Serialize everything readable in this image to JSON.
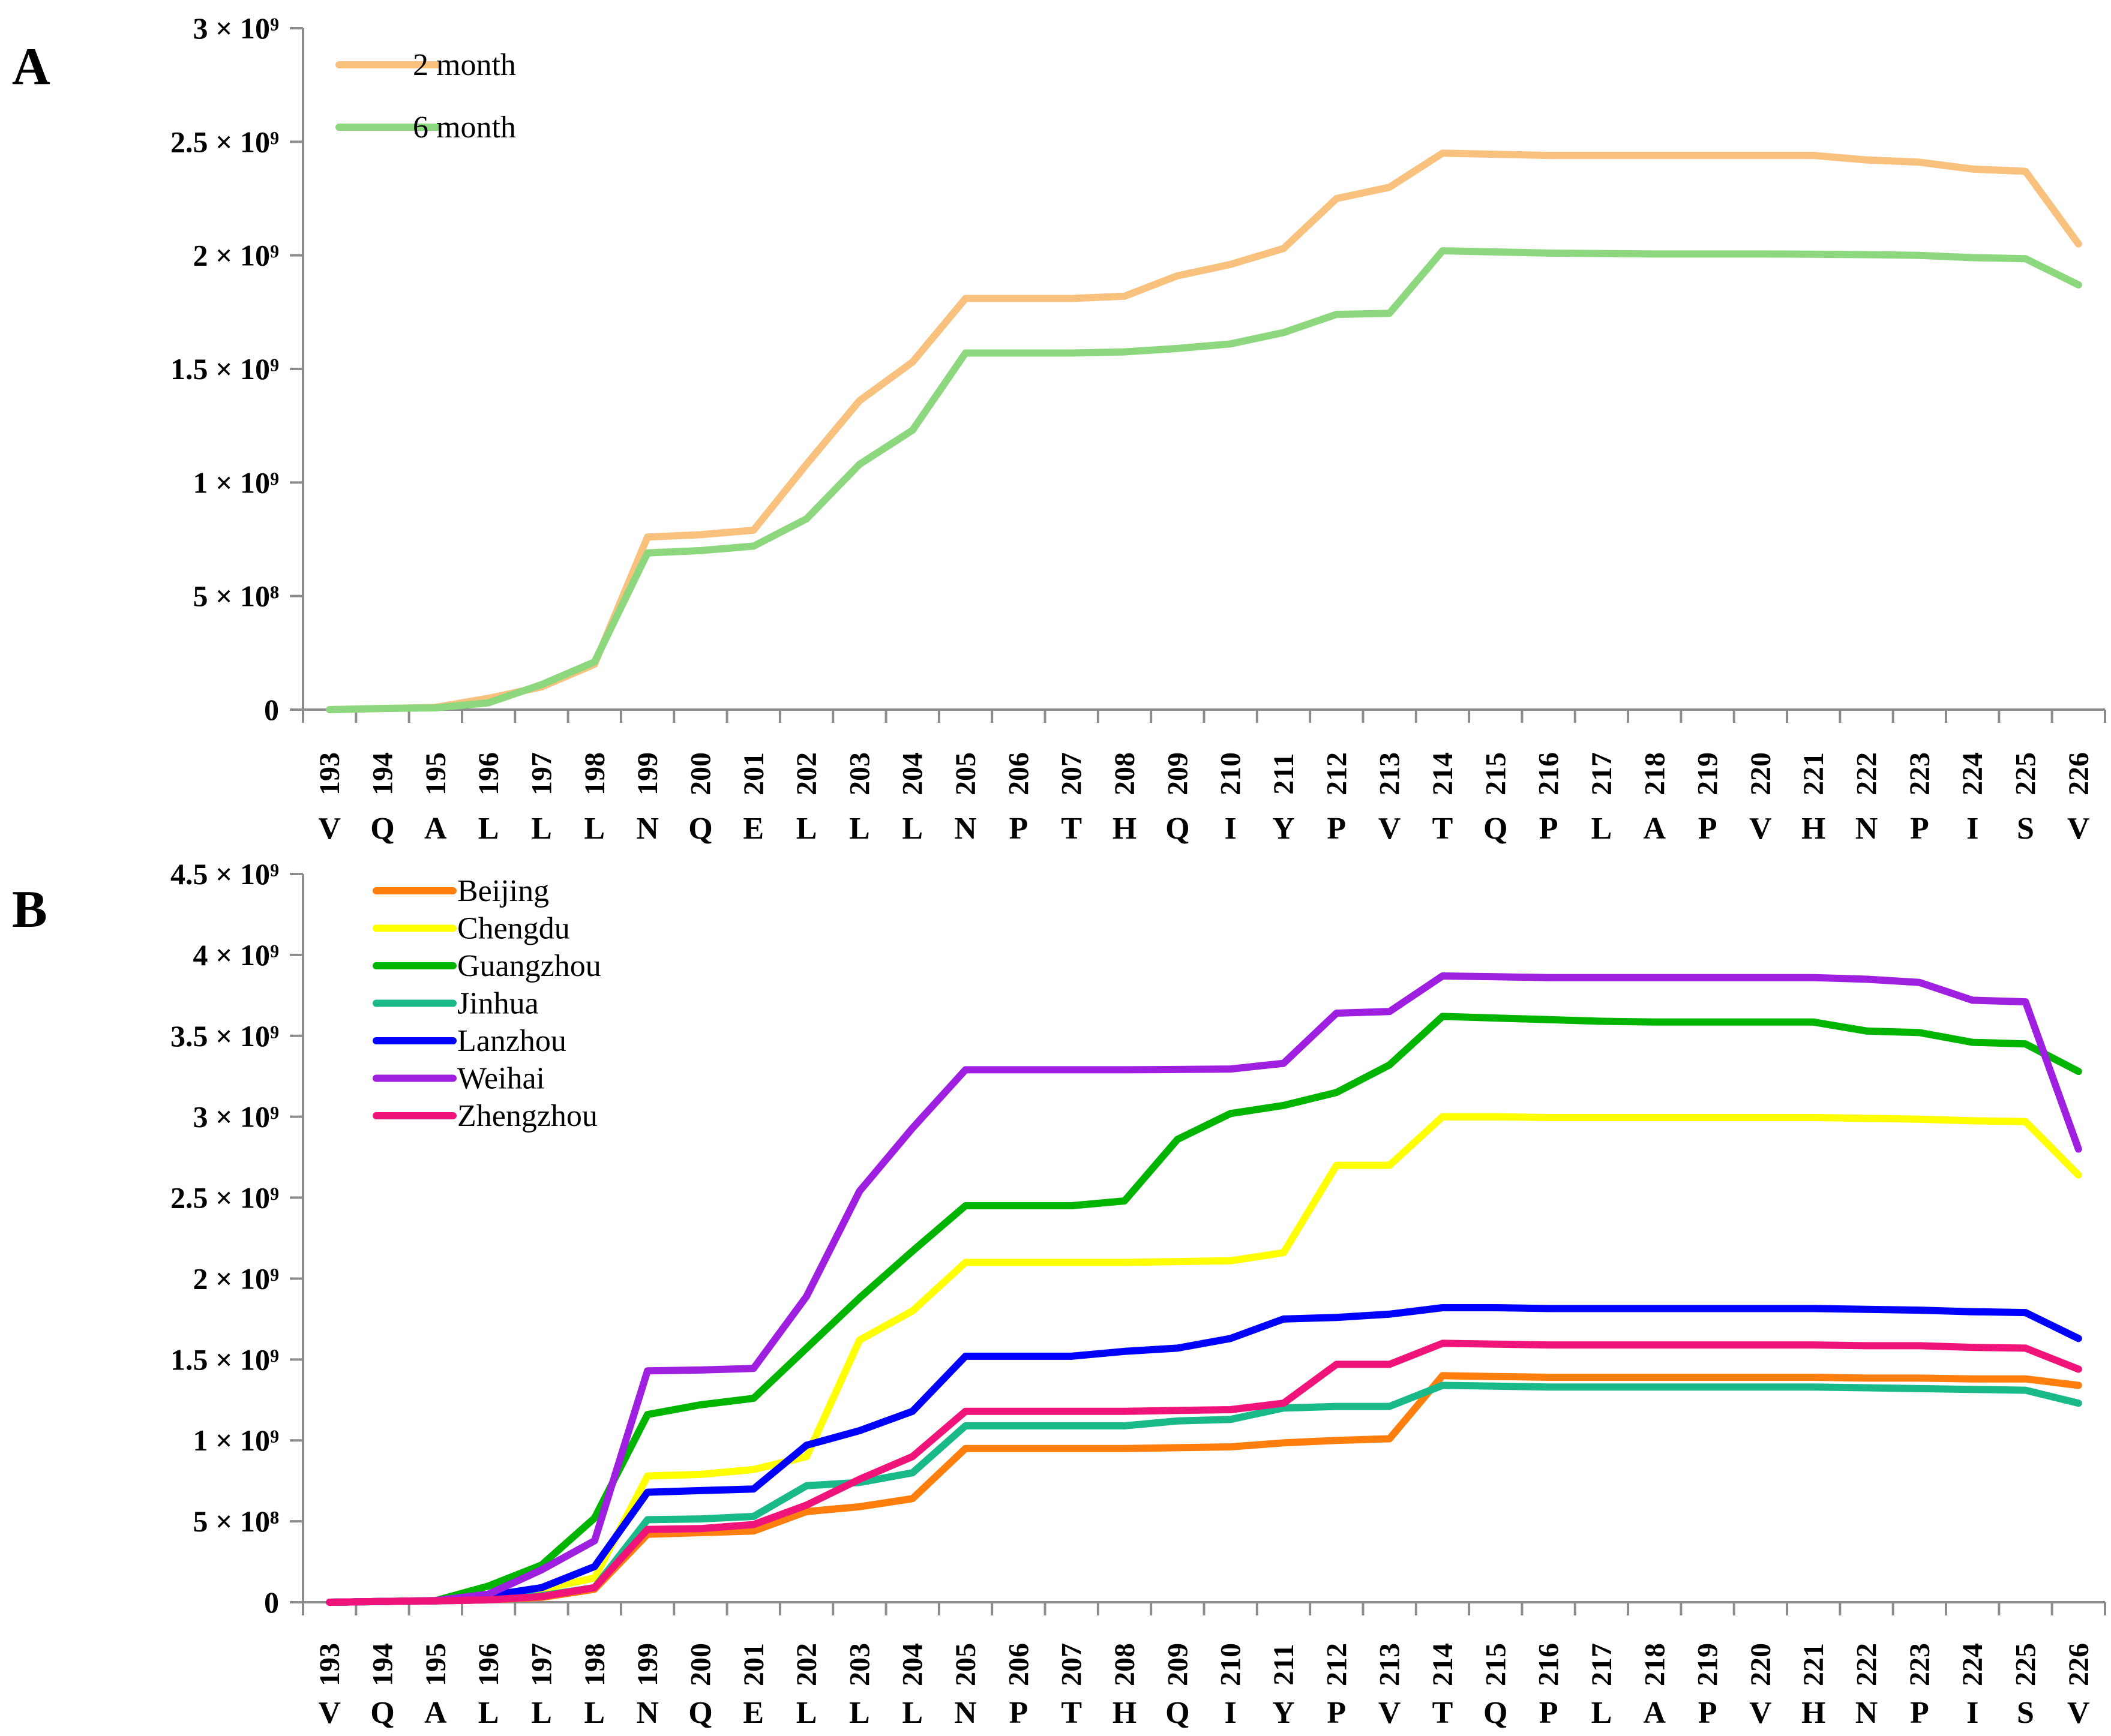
{
  "chart_data": [
    {
      "type": "line",
      "panel_label": "A",
      "title": "",
      "xlabel": "",
      "ylabel": "",
      "ylim": [
        0,
        3000000000
      ],
      "yticks": [
        {
          "value": 0,
          "label": "0"
        },
        {
          "value": 500000000,
          "label": "5 × 10⁸"
        },
        {
          "value": 1000000000,
          "label": "1 × 10⁹"
        },
        {
          "value": 1500000000,
          "label": "1.5 × 10⁹"
        },
        {
          "value": 2000000000,
          "label": "2 × 10⁹"
        },
        {
          "value": 2500000000,
          "label": "2.5 × 10⁹"
        },
        {
          "value": 3000000000,
          "label": "3 × 10⁹"
        }
      ],
      "categories": [
        "193",
        "194",
        "195",
        "196",
        "197",
        "198",
        "199",
        "200",
        "201",
        "202",
        "203",
        "204",
        "205",
        "206",
        "207",
        "208",
        "209",
        "210",
        "211",
        "212",
        "213",
        "214",
        "215",
        "216",
        "217",
        "218",
        "219",
        "220",
        "221",
        "222",
        "223",
        "224",
        "225",
        "226"
      ],
      "residues": [
        "V",
        "Q",
        "A",
        "L",
        "L",
        "L",
        "N",
        "Q",
        "E",
        "L",
        "L",
        "L",
        "N",
        "P",
        "T",
        "H",
        "Q",
        "I",
        "Y",
        "P",
        "V",
        "T",
        "Q",
        "P",
        "L",
        "A",
        "P",
        "V",
        "H",
        "N",
        "P",
        "I",
        "S",
        "V"
      ],
      "legend_position": "top-left",
      "series": [
        {
          "name": "2 month",
          "color": "#F8C27E",
          "values": [
            0,
            5000000,
            10000000,
            50000000,
            100000000,
            200000000,
            760000000,
            770000000,
            790000000,
            1080000000,
            1360000000,
            1530000000,
            1810000000,
            1810000000,
            1810000000,
            1820000000,
            1910000000,
            1960000000,
            2030000000,
            2250000000,
            2300000000,
            2450000000,
            2445000000,
            2440000000,
            2440000000,
            2440000000,
            2440000000,
            2440000000,
            2440000000,
            2420000000,
            2410000000,
            2380000000,
            2370000000,
            2050000000
          ]
        },
        {
          "name": "6 month",
          "color": "#8DD87E",
          "values": [
            0,
            5000000,
            8000000,
            30000000,
            110000000,
            210000000,
            690000000,
            700000000,
            720000000,
            840000000,
            1080000000,
            1230000000,
            1570000000,
            1570000000,
            1570000000,
            1575000000,
            1590000000,
            1610000000,
            1660000000,
            1740000000,
            1745000000,
            2020000000,
            2015000000,
            2010000000,
            2008000000,
            2006000000,
            2006000000,
            2006000000,
            2005000000,
            2003000000,
            2000000000,
            1990000000,
            1985000000,
            1870000000
          ]
        }
      ]
    },
    {
      "type": "line",
      "panel_label": "B",
      "title": "",
      "xlabel": "",
      "ylabel": "",
      "ylim": [
        0,
        4500000000
      ],
      "yticks": [
        {
          "value": 0,
          "label": "0"
        },
        {
          "value": 500000000,
          "label": "5 × 10⁸"
        },
        {
          "value": 1000000000,
          "label": "1 × 10⁹"
        },
        {
          "value": 1500000000,
          "label": "1.5 × 10⁹"
        },
        {
          "value": 2000000000,
          "label": "2 × 10⁹"
        },
        {
          "value": 2500000000,
          "label": "2.5 × 10⁹"
        },
        {
          "value": 3000000000,
          "label": "3 × 10⁹"
        },
        {
          "value": 3500000000,
          "label": "3.5 × 10⁹"
        },
        {
          "value": 4000000000,
          "label": "4 × 10⁹"
        },
        {
          "value": 4500000000,
          "label": "4.5 × 10⁹"
        }
      ],
      "categories": [
        "193",
        "194",
        "195",
        "196",
        "197",
        "198",
        "199",
        "200",
        "201",
        "202",
        "203",
        "204",
        "205",
        "206",
        "207",
        "208",
        "209",
        "210",
        "211",
        "212",
        "213",
        "214",
        "215",
        "216",
        "217",
        "218",
        "219",
        "220",
        "221",
        "222",
        "223",
        "224",
        "225",
        "226"
      ],
      "residues": [
        "V",
        "Q",
        "A",
        "L",
        "L",
        "L",
        "N",
        "Q",
        "E",
        "L",
        "L",
        "L",
        "N",
        "P",
        "T",
        "H",
        "Q",
        "I",
        "Y",
        "P",
        "V",
        "T",
        "Q",
        "P",
        "L",
        "A",
        "P",
        "V",
        "H",
        "N",
        "P",
        "I",
        "S",
        "V"
      ],
      "legend_position": "top-left",
      "series": [
        {
          "name": "Beijing",
          "color": "#FF7F0E",
          "values": [
            0,
            5000000,
            8000000,
            15000000,
            30000000,
            80000000,
            420000000,
            430000000,
            440000000,
            560000000,
            590000000,
            640000000,
            950000000,
            950000000,
            950000000,
            950000000,
            955000000,
            960000000,
            985000000,
            1000000000,
            1010000000,
            1400000000,
            1395000000,
            1390000000,
            1390000000,
            1390000000,
            1390000000,
            1390000000,
            1390000000,
            1385000000,
            1385000000,
            1380000000,
            1380000000,
            1340000000
          ]
        },
        {
          "name": "Chengdu",
          "color": "#FFFF00",
          "values": [
            0,
            5000000,
            10000000,
            30000000,
            80000000,
            150000000,
            780000000,
            790000000,
            820000000,
            900000000,
            1620000000,
            1800000000,
            2100000000,
            2100000000,
            2100000000,
            2100000000,
            2105000000,
            2110000000,
            2160000000,
            2700000000,
            2700000000,
            3000000000,
            3000000000,
            2995000000,
            2995000000,
            2995000000,
            2995000000,
            2995000000,
            2995000000,
            2990000000,
            2985000000,
            2975000000,
            2970000000,
            2640000000
          ]
        },
        {
          "name": "Guangzhou",
          "color": "#00B400",
          "values": [
            0,
            5000000,
            10000000,
            100000000,
            230000000,
            520000000,
            1160000000,
            1220000000,
            1260000000,
            1570000000,
            1880000000,
            2170000000,
            2450000000,
            2450000000,
            2450000000,
            2480000000,
            2860000000,
            3020000000,
            3070000000,
            3150000000,
            3320000000,
            3620000000,
            3610000000,
            3600000000,
            3590000000,
            3585000000,
            3585000000,
            3585000000,
            3585000000,
            3530000000,
            3520000000,
            3460000000,
            3450000000,
            3280000000
          ]
        },
        {
          "name": "Jinhua",
          "color": "#1AB98A",
          "values": [
            0,
            5000000,
            8000000,
            15000000,
            40000000,
            90000000,
            510000000,
            515000000,
            530000000,
            720000000,
            740000000,
            800000000,
            1090000000,
            1090000000,
            1090000000,
            1090000000,
            1120000000,
            1130000000,
            1200000000,
            1210000000,
            1210000000,
            1340000000,
            1335000000,
            1330000000,
            1330000000,
            1330000000,
            1330000000,
            1330000000,
            1330000000,
            1325000000,
            1320000000,
            1315000000,
            1310000000,
            1230000000
          ]
        },
        {
          "name": "Lanzhou",
          "color": "#0000FF",
          "values": [
            0,
            5000000,
            8000000,
            40000000,
            90000000,
            220000000,
            680000000,
            690000000,
            700000000,
            970000000,
            1060000000,
            1180000000,
            1520000000,
            1520000000,
            1520000000,
            1550000000,
            1570000000,
            1630000000,
            1750000000,
            1760000000,
            1780000000,
            1820000000,
            1820000000,
            1815000000,
            1815000000,
            1815000000,
            1815000000,
            1815000000,
            1815000000,
            1810000000,
            1805000000,
            1795000000,
            1790000000,
            1630000000
          ]
        },
        {
          "name": "Weihai",
          "color": "#9E1FE0",
          "values": [
            0,
            5000000,
            10000000,
            50000000,
            200000000,
            380000000,
            1430000000,
            1435000000,
            1445000000,
            1890000000,
            2540000000,
            2930000000,
            3290000000,
            3290000000,
            3290000000,
            3290000000,
            3292000000,
            3295000000,
            3330000000,
            3640000000,
            3650000000,
            3870000000,
            3865000000,
            3860000000,
            3860000000,
            3860000000,
            3860000000,
            3860000000,
            3860000000,
            3850000000,
            3830000000,
            3720000000,
            3710000000,
            2800000000
          ]
        },
        {
          "name": "Zhengzhou",
          "color": "#F0147A",
          "values": [
            0,
            5000000,
            8000000,
            15000000,
            35000000,
            90000000,
            450000000,
            455000000,
            480000000,
            600000000,
            760000000,
            900000000,
            1180000000,
            1180000000,
            1180000000,
            1180000000,
            1185000000,
            1190000000,
            1230000000,
            1470000000,
            1470000000,
            1600000000,
            1595000000,
            1590000000,
            1590000000,
            1590000000,
            1590000000,
            1590000000,
            1590000000,
            1585000000,
            1585000000,
            1575000000,
            1570000000,
            1440000000
          ]
        }
      ]
    }
  ]
}
